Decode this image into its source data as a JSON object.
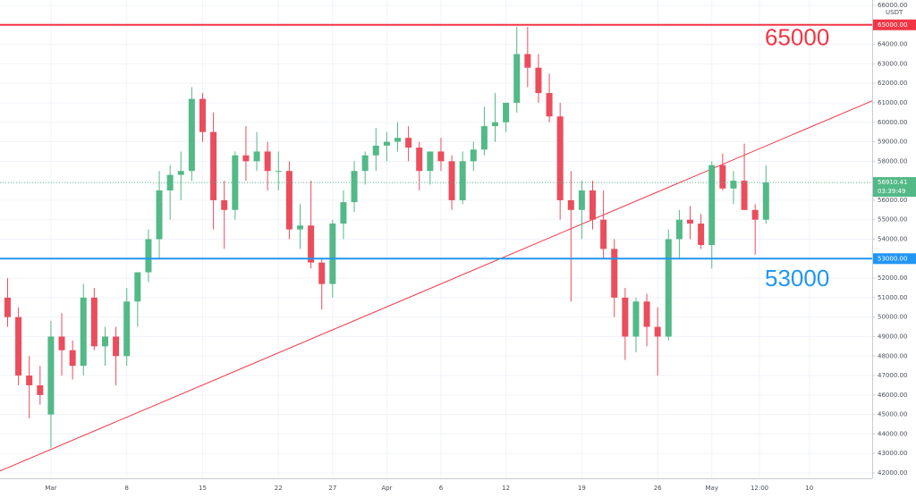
{
  "chart_data": {
    "type": "candlestick",
    "unit": "USDT",
    "up_color": "#53b987",
    "down_color": "#eb4d5c",
    "grid": true,
    "xlim": [
      -4.7,
      75.8
    ],
    "ylim": [
      42000,
      66000
    ],
    "xticks": [
      {
        "value": 0,
        "label": "Mar"
      },
      {
        "value": 7,
        "label": "8"
      },
      {
        "value": 14,
        "label": "15"
      },
      {
        "value": 21,
        "label": "22"
      },
      {
        "value": 26,
        "label": "27"
      },
      {
        "value": 31,
        "label": "Apr"
      },
      {
        "value": 36,
        "label": "6"
      },
      {
        "value": 42,
        "label": "12"
      },
      {
        "value": 49,
        "label": "19"
      },
      {
        "value": 56,
        "label": "26"
      },
      {
        "value": 61,
        "label": "May"
      },
      {
        "value": 65.4,
        "label": "12:00"
      },
      {
        "value": 70,
        "label": "10"
      }
    ],
    "yticks": [
      {
        "value": 42000,
        "label": "42000.00"
      },
      {
        "value": 43000,
        "label": "43000.00"
      },
      {
        "value": 44000,
        "label": "44000.00"
      },
      {
        "value": 45000,
        "label": "45000.00"
      },
      {
        "value": 46000,
        "label": "46000.00"
      },
      {
        "value": 47000,
        "label": "47000.00"
      },
      {
        "value": 48000,
        "label": "48000.00"
      },
      {
        "value": 49000,
        "label": "49000.00"
      },
      {
        "value": 50000,
        "label": "50000.00"
      },
      {
        "value": 51000,
        "label": "51000.00"
      },
      {
        "value": 52000,
        "label": "52000.00"
      },
      {
        "value": 54000,
        "label": "54000.00"
      },
      {
        "value": 55000,
        "label": "55000.00"
      },
      {
        "value": 56000,
        "label": "56000.00"
      },
      {
        "value": 58000,
        "label": "58000.00"
      },
      {
        "value": 59000,
        "label": "59000.00"
      },
      {
        "value": 60000,
        "label": "60000.00"
      },
      {
        "value": 61000,
        "label": "61000.00"
      },
      {
        "value": 62000,
        "label": "62000.00"
      },
      {
        "value": 63000,
        "label": "63000.00"
      },
      {
        "value": 64000,
        "label": "64000.00"
      },
      {
        "value": 66000,
        "label": "66000.00"
      }
    ],
    "candles": {
      "x": [
        -4,
        -3,
        -2,
        -1,
        0,
        1,
        2,
        3,
        4,
        5,
        6,
        7,
        8,
        9,
        10,
        11,
        12,
        13,
        14,
        15,
        16,
        17,
        18,
        19,
        20,
        21,
        22,
        23,
        24,
        25,
        26,
        27,
        28,
        29,
        30,
        31,
        32,
        33,
        34,
        35,
        36,
        37,
        38,
        39,
        40,
        41,
        42,
        43,
        44,
        45,
        46,
        47,
        48,
        49,
        50,
        51,
        52,
        53,
        54,
        55,
        56,
        57,
        58,
        59,
        60,
        61,
        62,
        63,
        64,
        65,
        66
      ],
      "open": [
        51000,
        50000,
        47000,
        46500,
        45000,
        49000,
        48300,
        47500,
        51000,
        48500,
        49000,
        48000,
        50800,
        52300,
        54000,
        56500,
        57300,
        57500,
        61200,
        59500,
        56000,
        55500,
        58300,
        58000,
        58500,
        57500,
        57500,
        54500,
        54700,
        52800,
        51700,
        54800,
        55900,
        57500,
        58300,
        58800,
        59000,
        59200,
        58700,
        57500,
        58500,
        58000,
        56000,
        58000,
        58600,
        59800,
        60000,
        61000,
        63500,
        62800,
        61500,
        60300,
        56000,
        55500,
        56500,
        55000,
        53500,
        51000,
        49000,
        50800,
        49500,
        49000,
        54000,
        55000,
        54800,
        53700,
        57800,
        56600,
        57000,
        55500,
        55000
      ],
      "high": [
        52000,
        50500,
        48000,
        47500,
        49800,
        50200,
        48800,
        51700,
        51500,
        49500,
        49500,
        51500,
        52300,
        54500,
        57500,
        57800,
        58500,
        61800,
        61500,
        60500,
        57000,
        58500,
        59800,
        59500,
        59000,
        58500,
        58000,
        55800,
        57000,
        53000,
        55000,
        56500,
        58000,
        58500,
        59700,
        59500,
        60000,
        59800,
        59000,
        58500,
        59200,
        58300,
        58500,
        59000,
        60800,
        61500,
        61000,
        64900,
        64900,
        63500,
        62500,
        61000,
        57500,
        57000,
        57000,
        56500,
        54000,
        51500,
        51000,
        51200,
        50500,
        54500,
        55500,
        55700,
        55300,
        58000,
        58400,
        57500,
        58900,
        55800,
        57800
      ],
      "low": [
        49500,
        46500,
        44800,
        45500,
        43300,
        47000,
        46800,
        47000,
        48300,
        47500,
        46500,
        47500,
        49500,
        51800,
        53000,
        55000,
        56000,
        57000,
        59000,
        54500,
        53500,
        55000,
        57000,
        57500,
        56500,
        56500,
        54000,
        53500,
        52500,
        50400,
        51000,
        54000,
        55400,
        56800,
        57500,
        58000,
        58500,
        58000,
        56500,
        56800,
        57500,
        55500,
        55800,
        57500,
        58300,
        59000,
        59500,
        60500,
        61800,
        61000,
        60000,
        55000,
        50800,
        54000,
        54500,
        53000,
        50000,
        47800,
        48200,
        48500,
        47000,
        48800,
        53000,
        54000,
        53500,
        52500,
        56500,
        55800,
        55500,
        53200,
        54800
      ],
      "close": [
        50000,
        47000,
        46500,
        46000,
        49000,
        48300,
        47500,
        51000,
        48500,
        49000,
        48000,
        50800,
        52300,
        54000,
        56500,
        57300,
        57500,
        61200,
        59500,
        56000,
        55500,
        58300,
        58000,
        58500,
        57500,
        57500,
        54500,
        54700,
        52800,
        51700,
        54800,
        55900,
        57500,
        58300,
        58800,
        59000,
        59200,
        58700,
        57500,
        58500,
        58000,
        56000,
        58000,
        58600,
        59800,
        60000,
        61000,
        63500,
        62800,
        61500,
        60300,
        56000,
        55500,
        56500,
        55000,
        53500,
        51000,
        49000,
        50800,
        49500,
        49000,
        54000,
        55000,
        54800,
        53700,
        57800,
        56600,
        57000,
        55500,
        55000,
        56910
      ]
    },
    "hlines": [
      {
        "value": 65000,
        "label": "65000.00",
        "annotation": "65000",
        "color": "#f23645"
      },
      {
        "value": 53000,
        "label": "53000.00",
        "annotation": "53000",
        "color": "#2196f3"
      }
    ],
    "trendline": {
      "x": [
        -4.7,
        75.8
      ],
      "y": [
        42100,
        61100
      ],
      "color": "#f23645"
    },
    "last_price": {
      "value": 56910.41,
      "label": "56910.41",
      "countdown": "03:39:49",
      "color": "#53b987"
    }
  }
}
